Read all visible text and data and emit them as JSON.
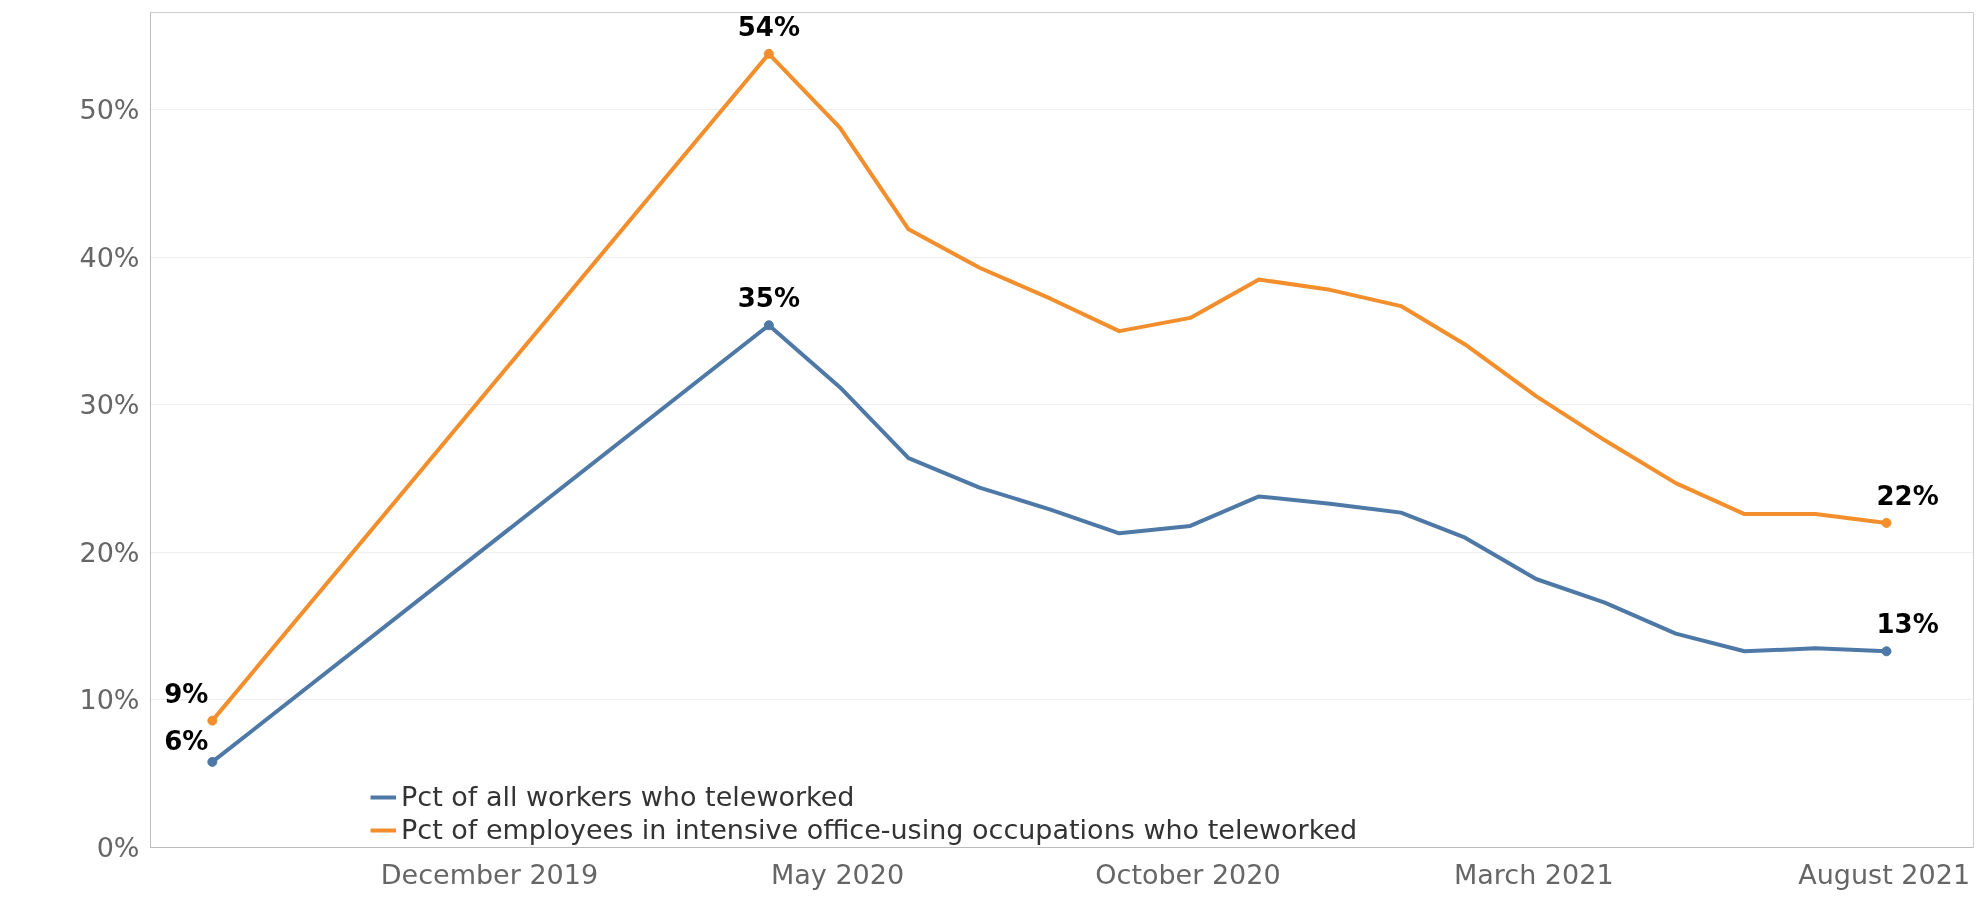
{
  "chart_data": {
    "type": "line",
    "x": [
      "2019-09",
      "2020-05",
      "2020-06",
      "2020-07",
      "2020-08",
      "2020-09",
      "2020-10",
      "2020-11",
      "2020-12",
      "2021-01",
      "2021-02",
      "2021-03",
      "2021-04",
      "2021-05",
      "2021-06",
      "2021-07",
      "2021-08",
      "2021-09"
    ],
    "series": [
      {
        "name": "Pct of all workers who teleworked",
        "color": "#4e79a7",
        "values": [
          5.8,
          35.4,
          31.2,
          26.4,
          24.4,
          22.9,
          21.3,
          21.8,
          23.8,
          23.3,
          22.7,
          21.0,
          18.2,
          16.6,
          14.5,
          13.3,
          13.5,
          13.3
        ],
        "value_labels": [
          "6%",
          "35%",
          null,
          null,
          null,
          null,
          null,
          null,
          null,
          null,
          null,
          null,
          null,
          null,
          null,
          null,
          null,
          "13%"
        ]
      },
      {
        "name": "Pct of employees in intensive office-using occupations who teleworked",
        "color": "#f28e2b",
        "values": [
          8.6,
          53.8,
          48.8,
          41.9,
          39.3,
          37.2,
          35.0,
          35.9,
          38.5,
          37.8,
          36.7,
          34.1,
          30.6,
          27.6,
          24.7,
          22.6,
          22.6,
          22.0
        ],
        "value_labels": [
          "9%",
          "54%",
          null,
          null,
          null,
          null,
          null,
          null,
          null,
          null,
          null,
          null,
          null,
          null,
          null,
          null,
          null,
          "22%"
        ]
      }
    ],
    "xlim": [
      "2019-08-05",
      "2021-10-09"
    ],
    "xticks": [
      {
        "value": "2019-12-31",
        "label": "December 2019"
      },
      {
        "value": "2020-05-31",
        "label": "May 2020"
      },
      {
        "value": "2020-10-31",
        "label": "October 2020"
      },
      {
        "value": "2021-03-31",
        "label": "March 2021"
      },
      {
        "value": "2021-08-31",
        "label": "August 2021"
      }
    ],
    "ylim": [
      0,
      56.6
    ],
    "yticks": [
      {
        "value": 0,
        "label": "0%"
      },
      {
        "value": 10,
        "label": "10%"
      },
      {
        "value": 20,
        "label": "20%"
      },
      {
        "value": 30,
        "label": "30%"
      },
      {
        "value": 40,
        "label": "40%"
      },
      {
        "value": 50,
        "label": "50%"
      }
    ],
    "grid": "y",
    "legend": "bottom left"
  }
}
